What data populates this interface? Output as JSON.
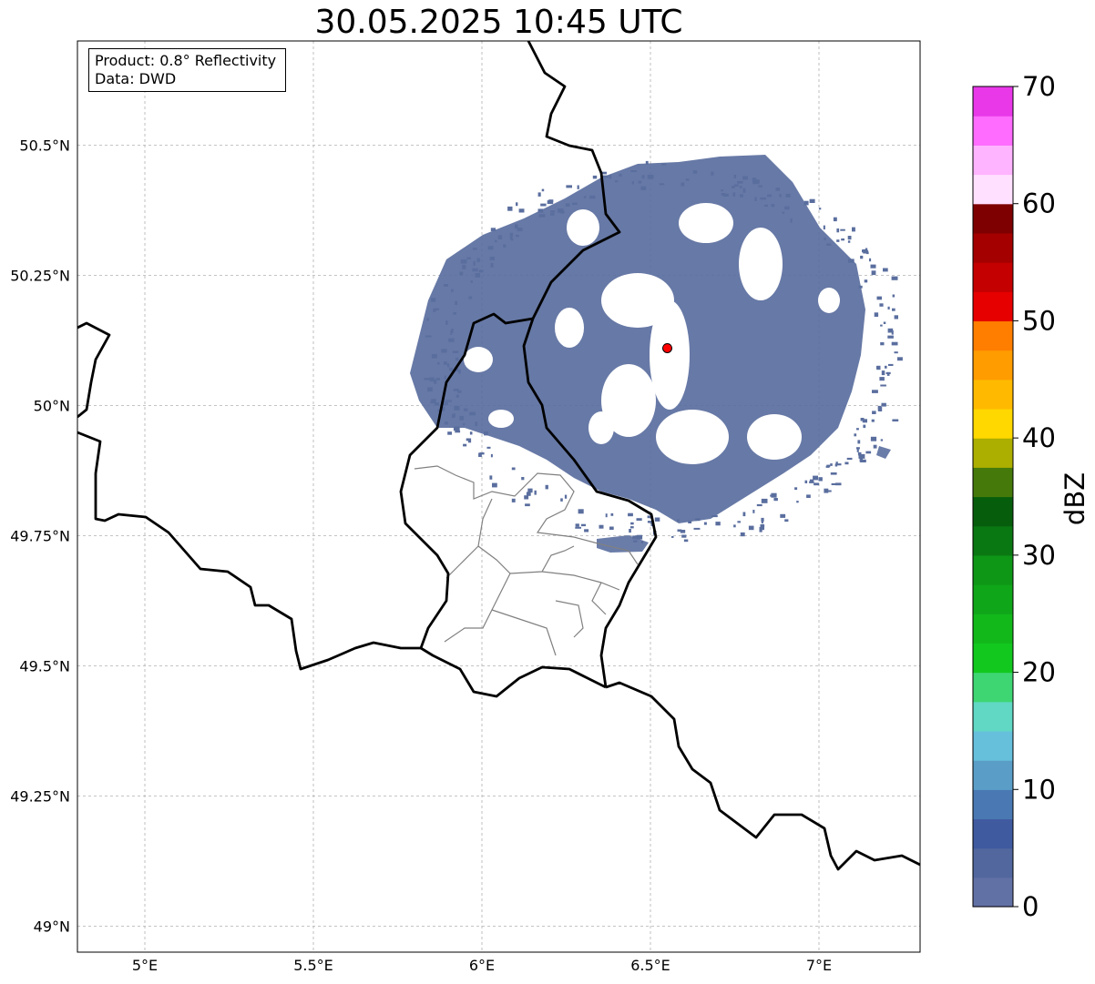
{
  "title": "30.05.2025 10:45 UTC",
  "info": {
    "product": "Product: 0.8° Reflectivity",
    "source": "Data: DWD"
  },
  "map": {
    "extent_lon": [
      4.8,
      7.3
    ],
    "extent_lat": [
      48.95,
      50.7
    ],
    "radar_site": {
      "lon": 6.55,
      "lat": 50.11,
      "color": "#ff0000"
    },
    "x_ticks": [
      {
        "value": 5.0,
        "label": "5°E"
      },
      {
        "value": 5.5,
        "label": "5.5°E"
      },
      {
        "value": 6.0,
        "label": "6°E"
      },
      {
        "value": 6.5,
        "label": "6.5°E"
      },
      {
        "value": 7.0,
        "label": "7°E"
      }
    ],
    "y_ticks": [
      {
        "value": 49.0,
        "label": "49°N"
      },
      {
        "value": 49.25,
        "label": "49.25°N"
      },
      {
        "value": 49.5,
        "label": "49.5°N"
      },
      {
        "value": 49.75,
        "label": "49.75°N"
      },
      {
        "value": 50.0,
        "label": "50°N"
      },
      {
        "value": 50.25,
        "label": "50.25°N"
      },
      {
        "value": 50.5,
        "label": "50.5°N"
      }
    ],
    "grid": true,
    "echo_color": "#5a6e9e"
  },
  "colorbar": {
    "label": "dBZ",
    "min": 0,
    "max": 70,
    "ticks": [
      {
        "value": 0,
        "label": "0"
      },
      {
        "value": 10,
        "label": "10"
      },
      {
        "value": 20,
        "label": "20"
      },
      {
        "value": 30,
        "label": "30"
      },
      {
        "value": 40,
        "label": "40"
      },
      {
        "value": 50,
        "label": "50"
      },
      {
        "value": 60,
        "label": "60"
      },
      {
        "value": 70,
        "label": "70"
      }
    ],
    "colors": [
      "#6271a5",
      "#52679e",
      "#405aa0",
      "#4a78b2",
      "#5a9ec8",
      "#66c0dc",
      "#60d8c4",
      "#3ed673",
      "#12c81f",
      "#12b81a",
      "#10a619",
      "#0e9617",
      "#0a7812",
      "#065e0c",
      "#457a0a",
      "#acae00",
      "#ffd800",
      "#ffba00",
      "#ff9c00",
      "#ff7e00",
      "#e60000",
      "#c40000",
      "#a40000",
      "#7e0000",
      "#ffe0ff",
      "#ffb4ff",
      "#ff6cff",
      "#e838e8"
    ]
  }
}
